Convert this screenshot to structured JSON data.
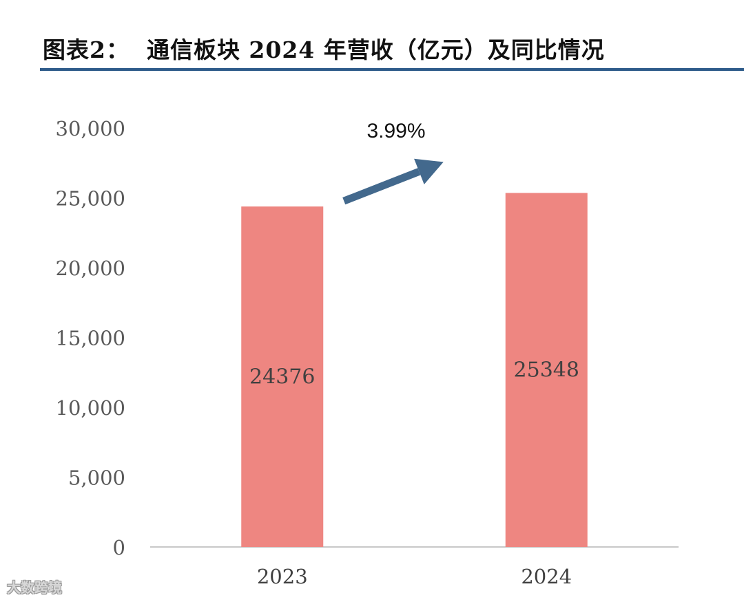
{
  "title": "图表2：  通信板块 2024 年营收（亿元）及同比情况",
  "chart_data": {
    "type": "bar",
    "categories": [
      "2023",
      "2024"
    ],
    "values": [
      24376,
      25348
    ],
    "data_labels": [
      "24376",
      "25348"
    ],
    "ylim": [
      0,
      30000
    ],
    "y_ticks": [
      0,
      5000,
      10000,
      15000,
      20000,
      25000,
      30000
    ],
    "y_tick_labels": [
      "0",
      "5,000",
      "10,000",
      "15,000",
      "20,000",
      "25,000",
      "30,000"
    ],
    "annotation": "3.99%",
    "grid": false,
    "colors": {
      "bar": "#ee8681",
      "arrow": "#43698d",
      "axis": "#c8c8c8",
      "title_rule": "#2e5b8a"
    }
  },
  "watermark": "大数跨境"
}
